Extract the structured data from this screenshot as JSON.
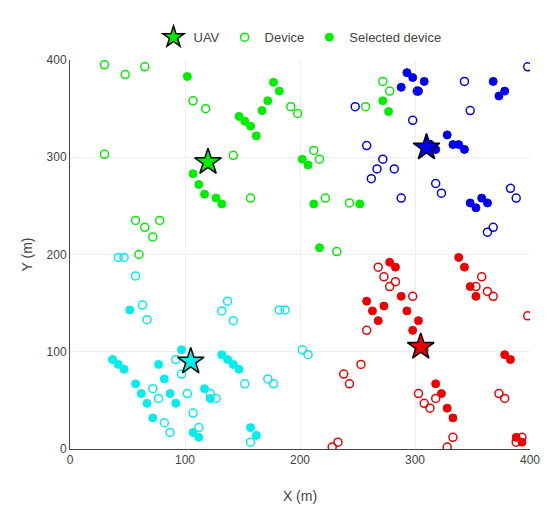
{
  "chart_data": {
    "type": "scatter",
    "xlabel": "X (m)",
    "ylabel": "Y (m)",
    "xlim": [
      0,
      400
    ],
    "ylim": [
      0,
      400
    ],
    "xticks": [
      0,
      100,
      200,
      300,
      400
    ],
    "yticks": [
      0,
      100,
      200,
      300,
      400
    ],
    "grid": true,
    "legend": "top",
    "series": [
      {
        "name": "UAV",
        "marker": "star",
        "colors": [
          "#00ee00",
          "#00eeee",
          "#ee0000",
          "#0000ee"
        ],
        "x": [
          120,
          105,
          305,
          310
        ],
        "values": [
          295,
          90,
          105,
          310
        ]
      },
      {
        "name": "Device",
        "marker": "circle-open",
        "color": "#00ee00",
        "x": [
          30,
          48,
          65,
          30,
          57,
          65,
          72,
          78,
          60,
          107,
          118,
          142,
          157,
          192,
          198,
          212,
          217,
          222,
          232,
          243,
          257,
          272,
          278
        ],
        "values": [
          395,
          385,
          393,
          303,
          235,
          228,
          218,
          235,
          200,
          358,
          350,
          302,
          258,
          352,
          345,
          307,
          298,
          258,
          203,
          253,
          352,
          378,
          368
        ]
      },
      {
        "name": "Selected device",
        "marker": "circle",
        "color": "#00ee00",
        "x": [
          102,
          107,
          112,
          117,
          122,
          127,
          132,
          147,
          152,
          157,
          162,
          167,
          172,
          177,
          182,
          202,
          207,
          212,
          217,
          252,
          272,
          277
        ],
        "values": [
          383,
          283,
          272,
          262,
          295,
          258,
          252,
          342,
          337,
          332,
          322,
          348,
          358,
          377,
          368,
          298,
          292,
          252,
          207,
          252,
          358,
          347
        ]
      },
      {
        "name": "Device",
        "marker": "circle-open",
        "color": "#00eeee",
        "x": [
          42,
          47,
          57,
          63,
          67,
          72,
          77,
          82,
          87,
          92,
          97,
          102,
          107,
          112,
          122,
          127,
          132,
          137,
          142,
          152,
          172,
          177,
          182,
          187,
          202,
          207,
          157
        ],
        "values": [
          197,
          197,
          178,
          148,
          133,
          62,
          52,
          27,
          17,
          92,
          77,
          57,
          37,
          22,
          57,
          52,
          142,
          152,
          132,
          67,
          72,
          67,
          143,
          143,
          102,
          97,
          7
        ]
      },
      {
        "name": "Selected device",
        "marker": "circle",
        "color": "#00eeee",
        "x": [
          37,
          42,
          47,
          52,
          57,
          62,
          67,
          72,
          77,
          82,
          87,
          92,
          97,
          105,
          107,
          112,
          117,
          122,
          132,
          137,
          142,
          147,
          157,
          162
        ],
        "values": [
          92,
          87,
          82,
          143,
          67,
          57,
          47,
          32,
          87,
          72,
          57,
          47,
          102,
          90,
          17,
          12,
          62,
          52,
          97,
          92,
          87,
          82,
          22,
          14
        ]
      },
      {
        "name": "Device",
        "marker": "circle-open",
        "color": "#0000ee",
        "x": [
          248,
          258,
          262,
          267,
          272,
          282,
          288,
          298,
          302,
          313,
          318,
          323,
          343,
          348,
          363,
          368,
          383,
          388,
          398
        ],
        "values": [
          352,
          312,
          278,
          288,
          298,
          288,
          258,
          338,
          368,
          313,
          273,
          263,
          378,
          348,
          223,
          228,
          268,
          258,
          393
        ]
      },
      {
        "name": "Selected device",
        "marker": "circle",
        "color": "#0000ee",
        "x": [
          288,
          293,
          298,
          303,
          308,
          313,
          318,
          328,
          333,
          338,
          343,
          348,
          353,
          358,
          363,
          368,
          373,
          378
        ],
        "values": [
          372,
          387,
          382,
          368,
          378,
          313,
          308,
          323,
          313,
          313,
          308,
          253,
          248,
          258,
          253,
          378,
          363,
          368
        ]
      },
      {
        "name": "Device",
        "marker": "circle-open",
        "color": "#ee0000",
        "x": [
          228,
          233,
          238,
          243,
          253,
          258,
          268,
          273,
          278,
          283,
          298,
          303,
          308,
          313,
          318,
          328,
          333,
          353,
          358,
          363,
          368,
          373,
          378,
          388,
          393,
          398
        ],
        "values": [
          2,
          7,
          77,
          67,
          87,
          122,
          187,
          177,
          167,
          172,
          157,
          57,
          47,
          42,
          52,
          2,
          12,
          167,
          177,
          162,
          157,
          57,
          52,
          7,
          12,
          137
        ]
      },
      {
        "name": "Selected device",
        "marker": "circle",
        "color": "#ee0000",
        "x": [
          258,
          263,
          268,
          273,
          278,
          283,
          288,
          293,
          298,
          303,
          308,
          305,
          318,
          323,
          328,
          333,
          338,
          343,
          348,
          353,
          378,
          383,
          388,
          393
        ],
        "values": [
          152,
          142,
          132,
          147,
          192,
          187,
          157,
          142,
          122,
          132,
          102,
          105,
          67,
          57,
          42,
          32,
          197,
          187,
          167,
          157,
          97,
          92,
          12,
          7
        ]
      }
    ]
  }
}
